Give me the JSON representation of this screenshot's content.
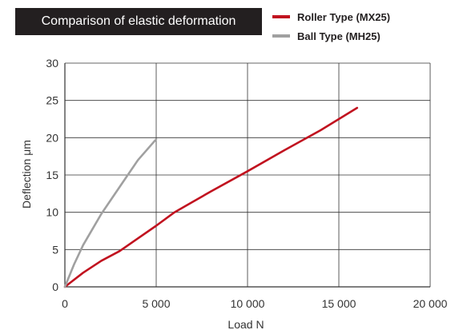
{
  "chart_data": {
    "type": "line",
    "title": "Comparison of elastic deformation",
    "xlabel": "Load  N",
    "ylabel": "Deflection  μm",
    "xlim": [
      0,
      20000
    ],
    "ylim": [
      0,
      30
    ],
    "x_ticks": [
      0,
      5000,
      10000,
      15000,
      20000
    ],
    "x_tick_labels": [
      "0",
      "5 000",
      "10 000",
      "15 000",
      "20 000"
    ],
    "y_ticks": [
      0,
      5,
      10,
      15,
      20,
      25,
      30
    ],
    "y_tick_labels": [
      "0",
      "5",
      "10",
      "15",
      "20",
      "25",
      "30"
    ],
    "grid": true,
    "legend_position": "top-right",
    "series": [
      {
        "name": "Roller Type (MX25)",
        "color": "#c1121f",
        "x": [
          0,
          1000,
          2000,
          3000,
          4000,
          5000,
          6000,
          8000,
          10000,
          12000,
          14000,
          16000
        ],
        "y": [
          0,
          1.9,
          3.5,
          4.8,
          6.5,
          8.2,
          10.0,
          12.8,
          15.5,
          18.3,
          21.0,
          24.0
        ]
      },
      {
        "name": "Ball Type (MH25)",
        "color": "#a0a0a0",
        "x": [
          0,
          500,
          1000,
          2000,
          3000,
          4000,
          5000
        ],
        "y": [
          0,
          3.0,
          5.6,
          9.8,
          13.4,
          17.0,
          19.8
        ]
      }
    ]
  }
}
